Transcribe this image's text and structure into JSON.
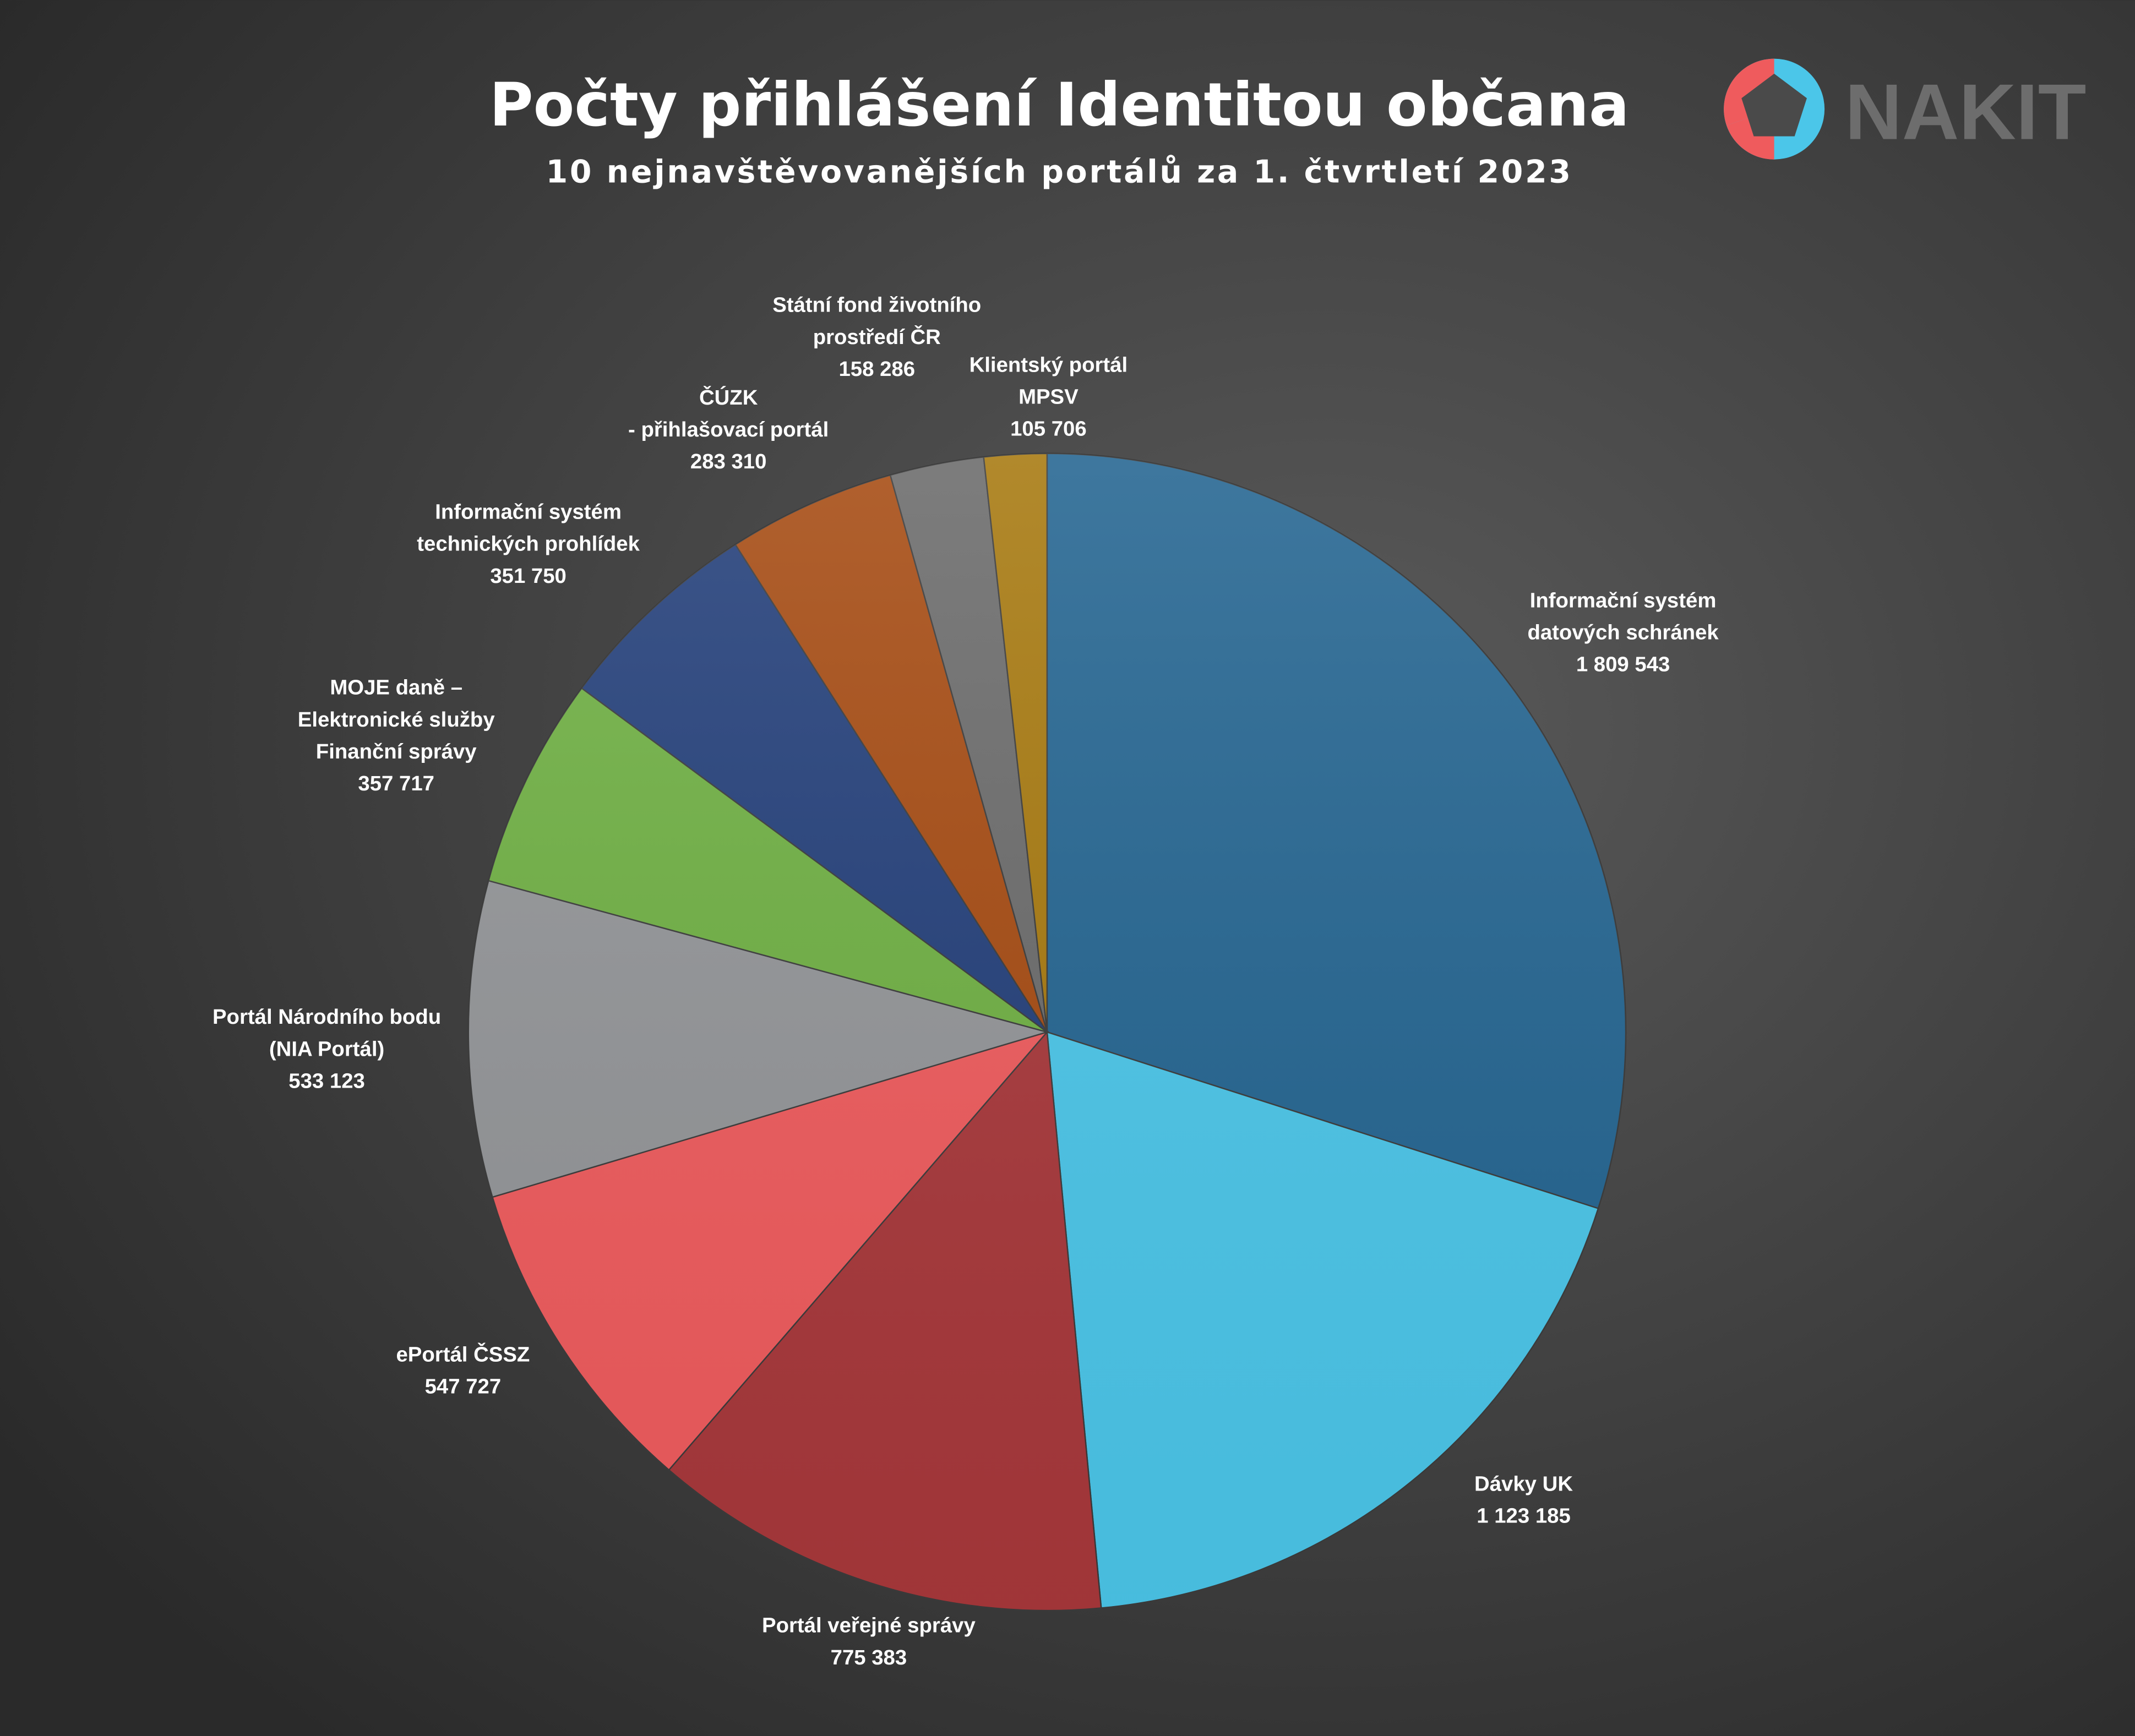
{
  "logo": "NAKIT",
  "chart_data": {
    "type": "pie",
    "title": "Počty přihlášení Identitou občana",
    "subtitle": "10 nejnavštěvovanějších portálů za 1. čtvrtletí 2023",
    "categories": [
      [
        "Informační systém",
        "datových schránek"
      ],
      [
        "Dávky UK"
      ],
      [
        "Portál veřejné správy"
      ],
      [
        "ePortál ČSSZ"
      ],
      [
        "Portál Národního bodu",
        "(NIA Portál)"
      ],
      [
        "MOJE daně –",
        "Elektronické služby",
        "Finanční správy"
      ],
      [
        "Informační systém",
        "technických prohlídek"
      ],
      [
        "ČÚZK",
        "- přihlašovací portál"
      ],
      [
        "Státní fond životního",
        "prostředí ČR"
      ],
      [
        "Klientský portál",
        "MPSV"
      ]
    ],
    "values": [
      1809543,
      1123185,
      775383,
      547727,
      533123,
      357717,
      351750,
      283310,
      158286,
      105706
    ],
    "value_labels": [
      "1 809 543",
      "1 123 185",
      "775 383",
      "547 727",
      "533 123",
      "357 717",
      "351 750",
      "283 310",
      "158 286",
      "105 706"
    ],
    "colors": [
      "#246591",
      "#4bc6e9",
      "#a8383b",
      "#ef5b5d",
      "#939598",
      "#6fb043",
      "#233f7a",
      "#a64b12",
      "#6b6b6b",
      "#a7790f"
    ]
  }
}
